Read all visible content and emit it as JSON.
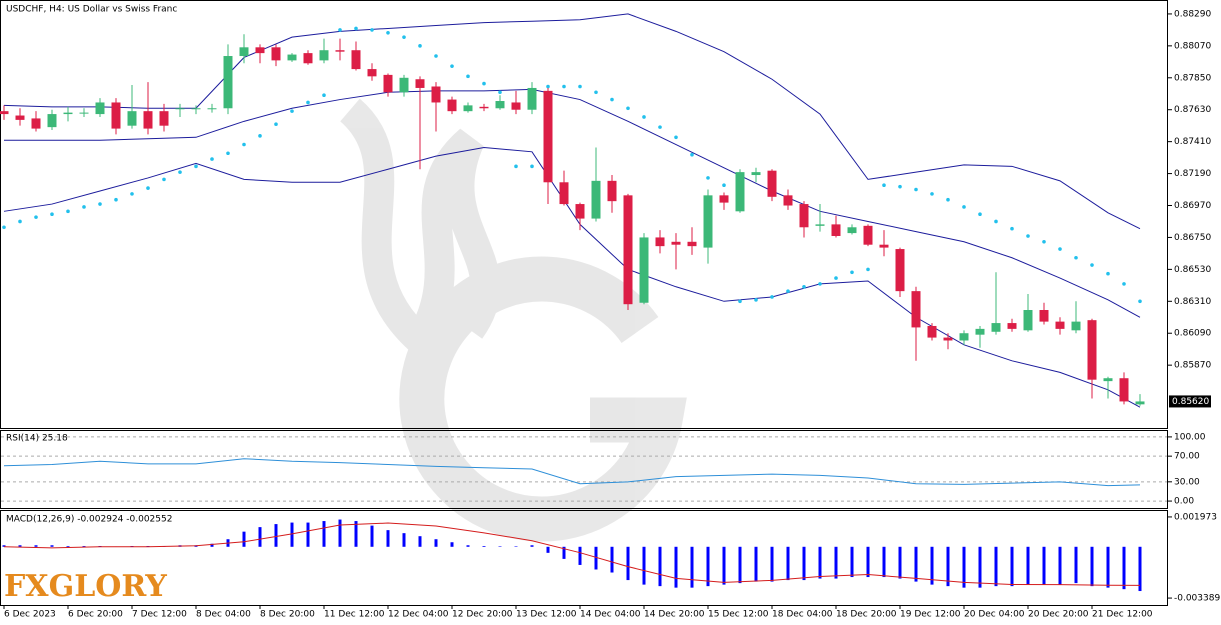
{
  "chart_data": [
    {
      "type": "candlestick",
      "title": "USDCHF, H4:  US Dollar vs Swiss Franc",
      "logo": "FXGLORY",
      "categories": [
        "6 Dec 2023",
        null,
        null,
        null,
        "6 Dec 20:00",
        null,
        null,
        null,
        "7 Dec 12:00",
        null,
        null,
        null,
        "8 Dec 04:00",
        null,
        null,
        null,
        "8 Dec 20:00",
        null,
        null,
        null,
        "11 Dec 12:00",
        null,
        null,
        null,
        "12 Dec 04:00",
        null,
        null,
        null,
        "12 Dec 20:00",
        null,
        null,
        null,
        "13 Dec 12:00",
        null,
        null,
        null,
        "14 Dec 04:00",
        null,
        null,
        null,
        "14 Dec 20:00",
        null,
        null,
        null,
        "15 Dec 12:00",
        null,
        null,
        null,
        "18 Dec 04:00",
        null,
        null,
        null,
        "18 Dec 20:00",
        null,
        null,
        null,
        "19 Dec 12:00",
        null,
        null,
        null,
        "20 Dec 04:00",
        null,
        null,
        null,
        "20 Dec 20:00",
        null,
        null,
        null,
        "21 Dec 12:00",
        null,
        null,
        null
      ],
      "open": [
        0.8762,
        0.8759,
        0.8757,
        0.8751,
        0.876,
        0.8761,
        0.876,
        0.8768,
        0.8752,
        0.8762,
        0.8762,
        0.8764,
        0.8764,
        0.8764,
        0.8764,
        0.88,
        0.8806,
        0.8806,
        0.8797,
        0.8802,
        0.8797,
        0.8804,
        0.8804,
        0.8791,
        0.8787,
        0.8775,
        0.8784,
        0.8779,
        0.877,
        0.8762,
        0.8765,
        0.8764,
        0.8768,
        0.8763,
        0.8776,
        0.8713,
        0.8698,
        0.8688,
        0.8714,
        0.8704,
        0.863,
        0.8675,
        0.8672,
        0.8672,
        0.8668,
        0.8704,
        0.8693,
        0.8718,
        0.8721,
        0.8704,
        0.8698,
        0.8683,
        0.8684,
        0.8678,
        0.8683,
        0.867,
        0.8667,
        0.8638,
        0.8614,
        0.8606,
        0.8604,
        0.8608,
        0.861,
        0.8616,
        0.8611,
        0.8625,
        0.8617,
        0.8611,
        0.8618,
        0.8576,
        0.8578,
        0.856
      ],
      "high": [
        0.8766,
        0.8764,
        0.8762,
        0.8763,
        0.8765,
        0.8764,
        0.8771,
        0.8771,
        0.878,
        0.8782,
        0.8767,
        0.8767,
        0.8766,
        0.8767,
        0.8808,
        0.8815,
        0.8808,
        0.8808,
        0.8802,
        0.8804,
        0.8812,
        0.8812,
        0.881,
        0.8795,
        0.8788,
        0.8787,
        0.8786,
        0.8782,
        0.8772,
        0.8768,
        0.8767,
        0.8773,
        0.8776,
        0.8782,
        0.8778,
        0.8721,
        0.8699,
        0.8737,
        0.8718,
        0.8705,
        0.8678,
        0.868,
        0.8678,
        0.8682,
        0.8708,
        0.8706,
        0.8722,
        0.8723,
        0.8722,
        0.8708,
        0.87,
        0.8698,
        0.869,
        0.8684,
        0.8684,
        0.868,
        0.8668,
        0.8641,
        0.8616,
        0.8609,
        0.8611,
        0.8614,
        0.8651,
        0.8619,
        0.8636,
        0.863,
        0.862,
        0.8631,
        0.8619,
        0.8579,
        0.8582,
        0.8567
      ],
      "low": [
        0.8756,
        0.8752,
        0.8748,
        0.8749,
        0.8755,
        0.8758,
        0.8758,
        0.8746,
        0.875,
        0.8746,
        0.8748,
        0.8758,
        0.876,
        0.8761,
        0.876,
        0.8795,
        0.8795,
        0.8793,
        0.8796,
        0.8794,
        0.8795,
        0.8797,
        0.879,
        0.8783,
        0.8772,
        0.8772,
        0.8722,
        0.8748,
        0.876,
        0.8761,
        0.8762,
        0.8763,
        0.876,
        0.876,
        0.8698,
        0.8697,
        0.868,
        0.8686,
        0.8692,
        0.8625,
        0.8629,
        0.8664,
        0.8653,
        0.8663,
        0.8657,
        0.8694,
        0.8692,
        0.8713,
        0.87,
        0.8694,
        0.8675,
        0.8679,
        0.8675,
        0.8677,
        0.8669,
        0.8662,
        0.8634,
        0.859,
        0.8604,
        0.8598,
        0.8601,
        0.8599,
        0.8608,
        0.861,
        0.861,
        0.8615,
        0.8608,
        0.8609,
        0.8564,
        0.8564,
        0.856,
        0.8559
      ],
      "close": [
        0.876,
        0.8756,
        0.875,
        0.876,
        0.8761,
        0.8761,
        0.8768,
        0.875,
        0.8762,
        0.875,
        0.8752,
        0.8764,
        0.8764,
        0.8764,
        0.88,
        0.8806,
        0.8802,
        0.8797,
        0.8801,
        0.8795,
        0.8804,
        0.8803,
        0.8791,
        0.8786,
        0.8775,
        0.8785,
        0.8778,
        0.8768,
        0.8762,
        0.8766,
        0.8764,
        0.8769,
        0.8763,
        0.8778,
        0.8713,
        0.8698,
        0.8688,
        0.8714,
        0.87,
        0.8629,
        0.8675,
        0.8669,
        0.867,
        0.8669,
        0.8704,
        0.8699,
        0.872,
        0.872,
        0.8703,
        0.8697,
        0.8682,
        0.8684,
        0.8676,
        0.8682,
        0.867,
        0.8668,
        0.8638,
        0.8613,
        0.8606,
        0.8604,
        0.8609,
        0.8612,
        0.8616,
        0.8612,
        0.8625,
        0.8617,
        0.8612,
        0.8617,
        0.8577,
        0.8578,
        0.8562,
        0.8562
      ],
      "up_color": "#3cb878",
      "down_color": "#dc1e46",
      "ylim": [
        0.85437,
        0.88386
      ],
      "yticks": [
        {
          "value": 0.8829,
          "label": "0.88290"
        },
        {
          "value": 0.8807,
          "label": "0.88070"
        },
        {
          "value": 0.8785,
          "label": "0.87850"
        },
        {
          "value": 0.8763,
          "label": "0.87630"
        },
        {
          "value": 0.8741,
          "label": "0.87410"
        },
        {
          "value": 0.8719,
          "label": "0.87190"
        },
        {
          "value": 0.8697,
          "label": "0.86970"
        },
        {
          "value": 0.8675,
          "label": "0.86750"
        },
        {
          "value": 0.8653,
          "label": "0.86530"
        },
        {
          "value": 0.8631,
          "label": "0.86310"
        },
        {
          "value": 0.8609,
          "label": "0.86090"
        },
        {
          "value": 0.8587,
          "label": "0.85870"
        }
      ],
      "last_price": {
        "value": 0.8562,
        "label": "0.85620"
      },
      "series": [
        {
          "style": "line",
          "color": "#1c1c9c",
          "x": [
            0,
            3,
            6,
            9,
            12,
            15,
            18,
            21,
            24,
            27,
            30,
            33,
            36,
            39,
            42,
            45,
            48,
            51,
            54,
            57,
            60,
            63,
            66,
            69,
            71
          ],
          "values": [
            0.8766,
            0.8765,
            0.8765,
            0.8764,
            0.8764,
            0.8799,
            0.8813,
            0.8817,
            0.8819,
            0.8821,
            0.8823,
            0.8824,
            0.8825,
            0.8829,
            0.8817,
            0.8803,
            0.8784,
            0.876,
            0.8715,
            0.872,
            0.8725,
            0.8724,
            0.8714,
            0.8692,
            0.8681
          ]
        },
        {
          "style": "line",
          "color": "#1c1c9c",
          "x": [
            0,
            3,
            6,
            9,
            12,
            15,
            18,
            21,
            24,
            27,
            30,
            33,
            36,
            39,
            42,
            45,
            48,
            51,
            54,
            57,
            60,
            63,
            66,
            69,
            71
          ],
          "values": [
            0.8742,
            0.8742,
            0.8742,
            0.8743,
            0.8744,
            0.8755,
            0.8764,
            0.877,
            0.8775,
            0.8776,
            0.8776,
            0.8777,
            0.877,
            0.8755,
            0.8739,
            0.8723,
            0.8707,
            0.8693,
            0.8686,
            0.8679,
            0.8672,
            0.8661,
            0.8647,
            0.8632,
            0.862
          ]
        },
        {
          "style": "line",
          "color": "#1c1c9c",
          "x": [
            0,
            3,
            6,
            9,
            12,
            15,
            18,
            21,
            24,
            27,
            30,
            33,
            36,
            39,
            42,
            45,
            48,
            51,
            54,
            57,
            60,
            63,
            66,
            69,
            71
          ],
          "values": [
            0.8693,
            0.8698,
            0.8707,
            0.8716,
            0.8726,
            0.8715,
            0.8713,
            0.8713,
            0.8722,
            0.8731,
            0.8737,
            0.8734,
            0.8684,
            0.8653,
            0.8641,
            0.8631,
            0.8634,
            0.8643,
            0.8645,
            0.862,
            0.8601,
            0.859,
            0.8582,
            0.857,
            0.8558
          ]
        },
        {
          "style": "dots",
          "color": "#22c0ec",
          "values": [
            0.8682,
            0.8686,
            0.8689,
            0.8691,
            0.8693,
            0.8696,
            0.8698,
            0.8701,
            0.8705,
            0.8709,
            0.8715,
            0.872,
            0.8724,
            0.8729,
            0.8733,
            0.8739,
            0.8745,
            0.8753,
            0.8762,
            0.8768,
            0.8773,
            0.8818,
            0.8819,
            0.8818,
            0.8816,
            0.8813,
            0.8807,
            0.88,
            0.8793,
            0.8786,
            0.8781,
            0.8775,
            0.8724,
            0.8724,
            0.8779,
            0.8779,
            0.8779,
            0.8775,
            0.877,
            0.8764,
            0.8758,
            0.8751,
            0.8744,
            0.8732,
            0.8716,
            0.8711,
            0.8631,
            0.8632,
            0.8634,
            0.8638,
            0.8641,
            0.8643,
            0.8647,
            0.8651,
            0.8653,
            0.8711,
            0.871,
            0.8708,
            0.8705,
            0.8701,
            0.8696,
            0.8691,
            0.8686,
            0.8681,
            0.8676,
            0.8672,
            0.8667,
            0.8661,
            0.8656,
            0.865,
            0.8643,
            0.8631
          ]
        }
      ]
    },
    {
      "type": "line",
      "title": "RSI(14) 25.18",
      "color": "#2e8fd8",
      "x": [
        0,
        3,
        6,
        9,
        12,
        15,
        18,
        21,
        24,
        27,
        30,
        33,
        36,
        39,
        42,
        45,
        48,
        51,
        54,
        57,
        60,
        63,
        66,
        69,
        71
      ],
      "values": [
        55,
        57,
        62,
        58,
        58,
        66,
        62,
        60,
        57,
        54,
        52,
        50,
        27,
        30,
        38,
        40,
        42,
        40,
        36,
        27,
        26,
        28,
        30,
        24,
        25.18
      ],
      "ylim": [
        -10.8,
        109.2
      ],
      "yticks": [
        {
          "value": 100,
          "label": "100.00"
        },
        {
          "value": 70,
          "label": "70.00"
        },
        {
          "value": 30,
          "label": "30.00"
        },
        {
          "value": 0,
          "label": "0.00"
        }
      ]
    },
    {
      "type": "macd",
      "title": "MACD(12,26,9) -0.002924 -0.002552",
      "histogram_color": "#0000ff",
      "signal_color": "#d41c1c",
      "histogram": [
        0.0001,
        0.0001,
        0.0001,
        0.0001,
        5e-05,
        5e-05,
        5e-05,
        2e-05,
        5e-05,
        5e-05,
        5e-05,
        0.0001,
        0.0001,
        0.0002,
        0.0005,
        0.001,
        0.0013,
        0.0015,
        0.0016,
        0.0016,
        0.0017,
        0.0018,
        0.0017,
        0.0014,
        0.0011,
        0.0009,
        0.0007,
        0.0005,
        0.0003,
        0.0001,
        5e-05,
        2e-05,
        2e-05,
        0.0001,
        -0.0004,
        -0.0008,
        -0.0012,
        -0.0015,
        -0.0017,
        -0.0022,
        -0.0025,
        -0.0026,
        -0.0027,
        -0.0027,
        -0.0026,
        -0.0025,
        -0.0024,
        -0.0023,
        -0.0023,
        -0.0022,
        -0.0022,
        -0.0021,
        -0.0021,
        -0.002,
        -0.002,
        -0.002,
        -0.0021,
        -0.0023,
        -0.0025,
        -0.0026,
        -0.0027,
        -0.0027,
        -0.0026,
        -0.0026,
        -0.0025,
        -0.0025,
        -0.0025,
        -0.0024,
        -0.0026,
        -0.0027,
        -0.0028,
        -0.002924
      ],
      "x": [
        0,
        3,
        6,
        9,
        12,
        15,
        18,
        21,
        24,
        27,
        30,
        33,
        36,
        39,
        42,
        45,
        48,
        51,
        54,
        57,
        60,
        63,
        66,
        69,
        71
      ],
      "signal": [
        0,
        -7e-05,
        0,
        0,
        7e-05,
        0.00033,
        0.00085,
        0.00144,
        0.00157,
        0.00137,
        0.00092,
        0.0004,
        -0.00039,
        -0.00131,
        -0.00209,
        -0.00235,
        -0.00222,
        -0.00196,
        -0.00183,
        -0.00209,
        -0.00235,
        -0.00249,
        -0.0025,
        -0.00254,
        -0.002552
      ],
      "ylim": [
        -0.003847,
        0.002365
      ],
      "yticks": [
        0.001973,
        -0.003389
      ]
    }
  ]
}
